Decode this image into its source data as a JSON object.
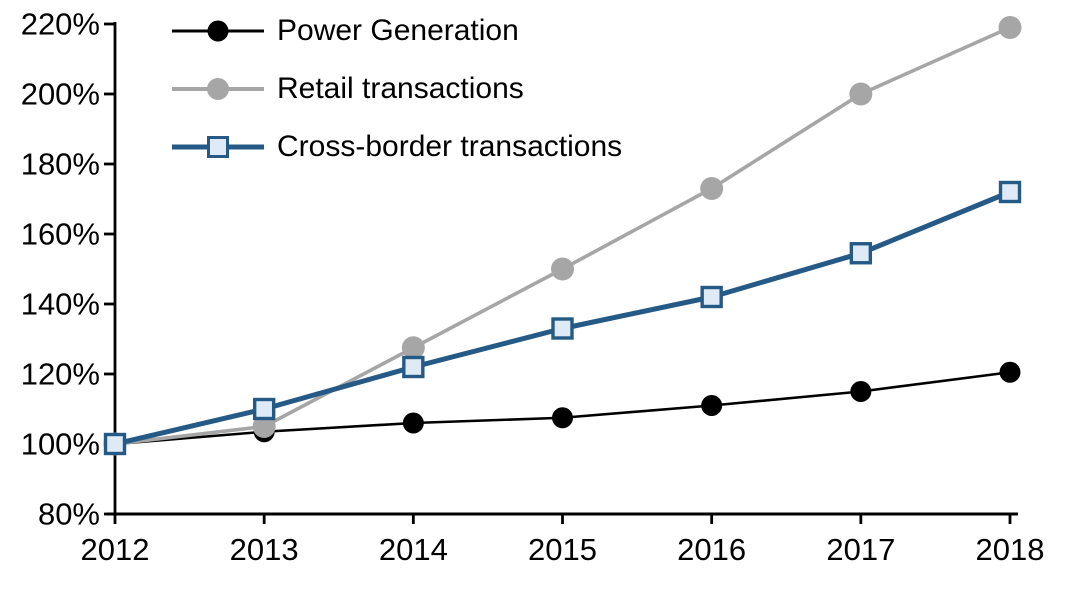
{
  "chart_data": {
    "type": "line",
    "title": "",
    "x": [
      2012,
      2013,
      2014,
      2015,
      2016,
      2017,
      2018
    ],
    "xtick_labels": [
      "2012",
      "2013",
      "2014",
      "2015",
      "2016",
      "2017",
      "2018"
    ],
    "ylim": [
      80,
      220
    ],
    "ytick_step": 20,
    "ytick_labels": [
      "80%",
      "100%",
      "120%",
      "140%",
      "160%",
      "180%",
      "200%",
      "220%"
    ],
    "grid": false,
    "legend_position": "top-left",
    "axis_color": "#000000",
    "series": [
      {
        "name": "Power Generation",
        "marker": "circle",
        "color": "#000000",
        "marker_fill": "#000000",
        "line_width": 2.6,
        "marker_size": 21,
        "values": [
          100,
          103.5,
          106,
          107.5,
          111,
          115,
          120.5
        ]
      },
      {
        "name": "Retail transactions",
        "marker": "circle",
        "color": "#a6a6a6",
        "marker_fill": "#a6a6a6",
        "line_width": 3.6,
        "marker_size": 23,
        "values": [
          100,
          105,
          127.5,
          150,
          173,
          200,
          219
        ]
      },
      {
        "name": "Cross-border transactions",
        "marker": "square",
        "color": "#255a87",
        "marker_fill": "#deebf7",
        "line_width": 5,
        "marker_size": 19,
        "values": [
          100,
          110,
          122,
          133,
          142,
          154.5,
          172
        ]
      }
    ]
  }
}
